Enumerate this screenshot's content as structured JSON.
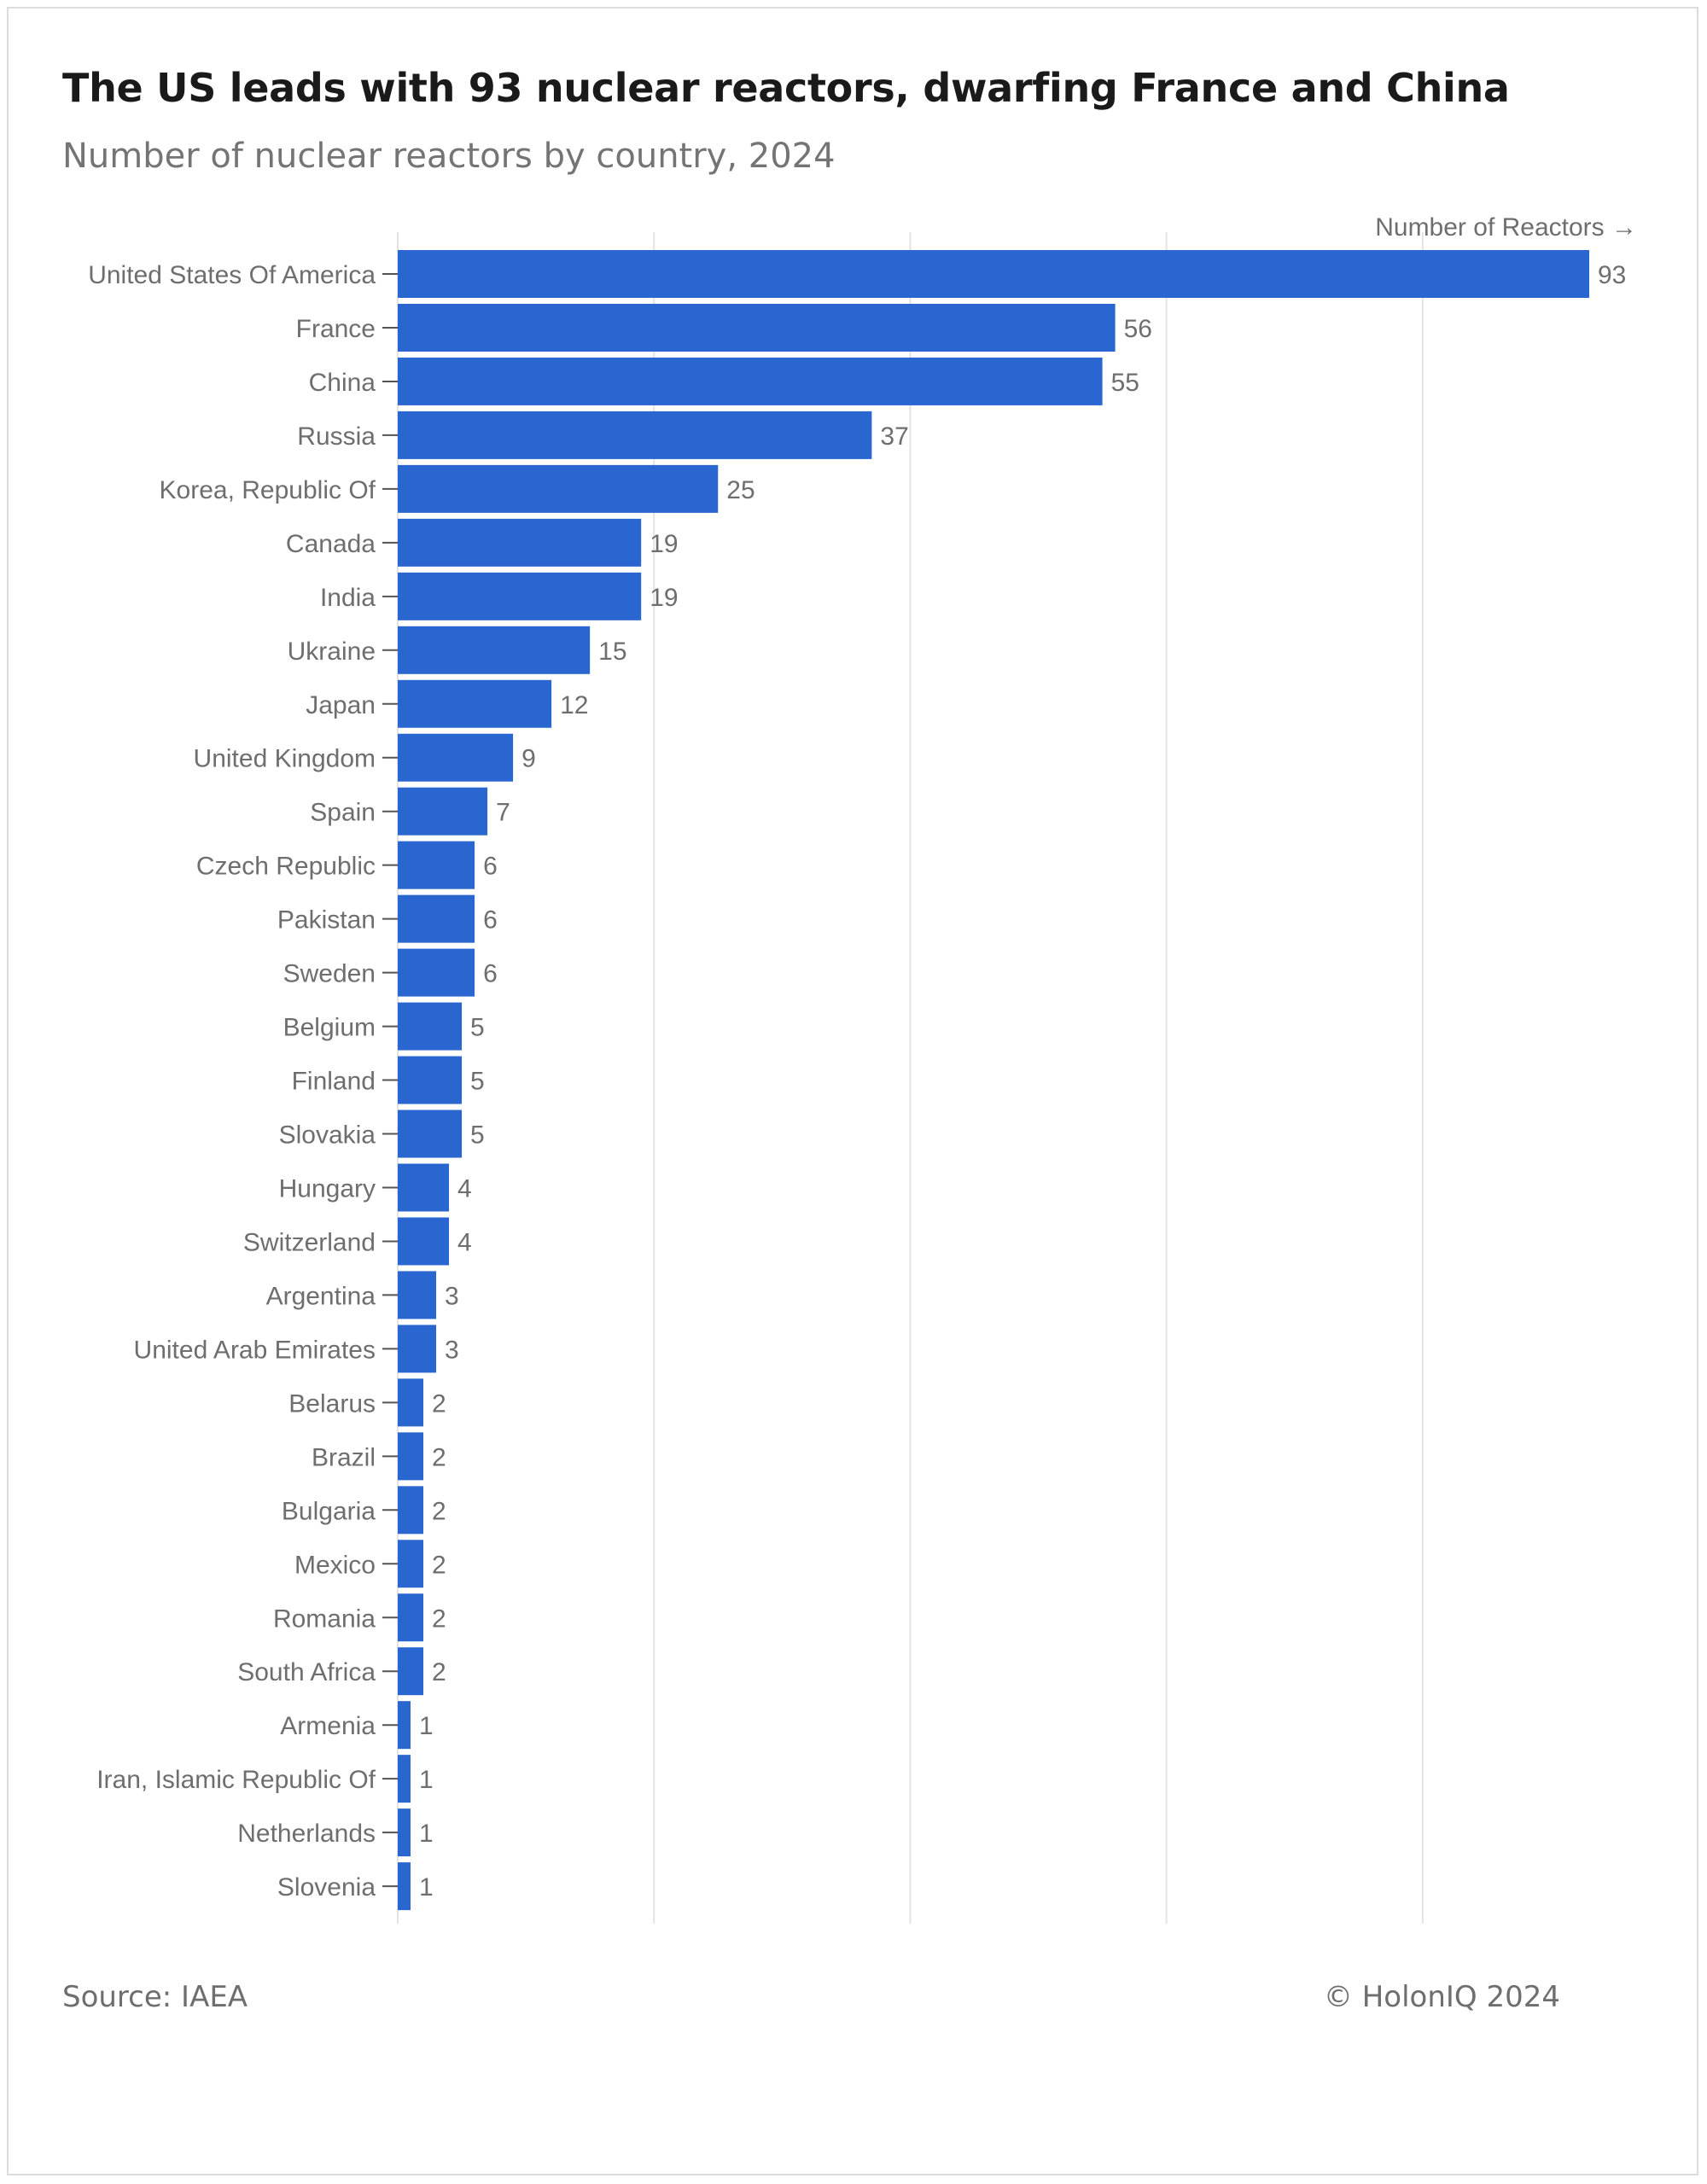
{
  "header": {
    "title": "The US leads with 93 nuclear reactors, dwarfing France and China",
    "subtitle": "Number of nuclear reactors by country, 2024"
  },
  "footer": {
    "source": "Source: IAEA",
    "copyright": "© HolonIQ 2024"
  },
  "colors": {
    "bar": "#2A66CF",
    "grid": "#e3e3e3",
    "axis_text": "#6e6e6e",
    "tick": "#555555"
  },
  "chart_data": {
    "type": "bar",
    "orientation": "horizontal",
    "title": "The US leads with 93 nuclear reactors, dwarfing France and China",
    "subtitle": "Number of nuclear reactors by country, 2024",
    "xlabel": "Number of Reactors →",
    "ylabel": "",
    "xlim": [
      0,
      100
    ],
    "grid": true,
    "categories": [
      "United States Of America",
      "France",
      "China",
      "Russia",
      "Korea, Republic Of",
      "Canada",
      "India",
      "Ukraine",
      "Japan",
      "United Kingdom",
      "Spain",
      "Czech Republic",
      "Pakistan",
      "Sweden",
      "Belgium",
      "Finland",
      "Slovakia",
      "Hungary",
      "Switzerland",
      "Argentina",
      "United Arab Emirates",
      "Belarus",
      "Brazil",
      "Bulgaria",
      "Mexico",
      "Romania",
      "South Africa",
      "Armenia",
      "Iran, Islamic Republic Of",
      "Netherlands",
      "Slovenia"
    ],
    "values": [
      93,
      56,
      55,
      37,
      25,
      19,
      19,
      15,
      12,
      9,
      7,
      6,
      6,
      6,
      5,
      5,
      5,
      4,
      4,
      3,
      3,
      2,
      2,
      2,
      2,
      2,
      2,
      1,
      1,
      1,
      1
    ]
  }
}
